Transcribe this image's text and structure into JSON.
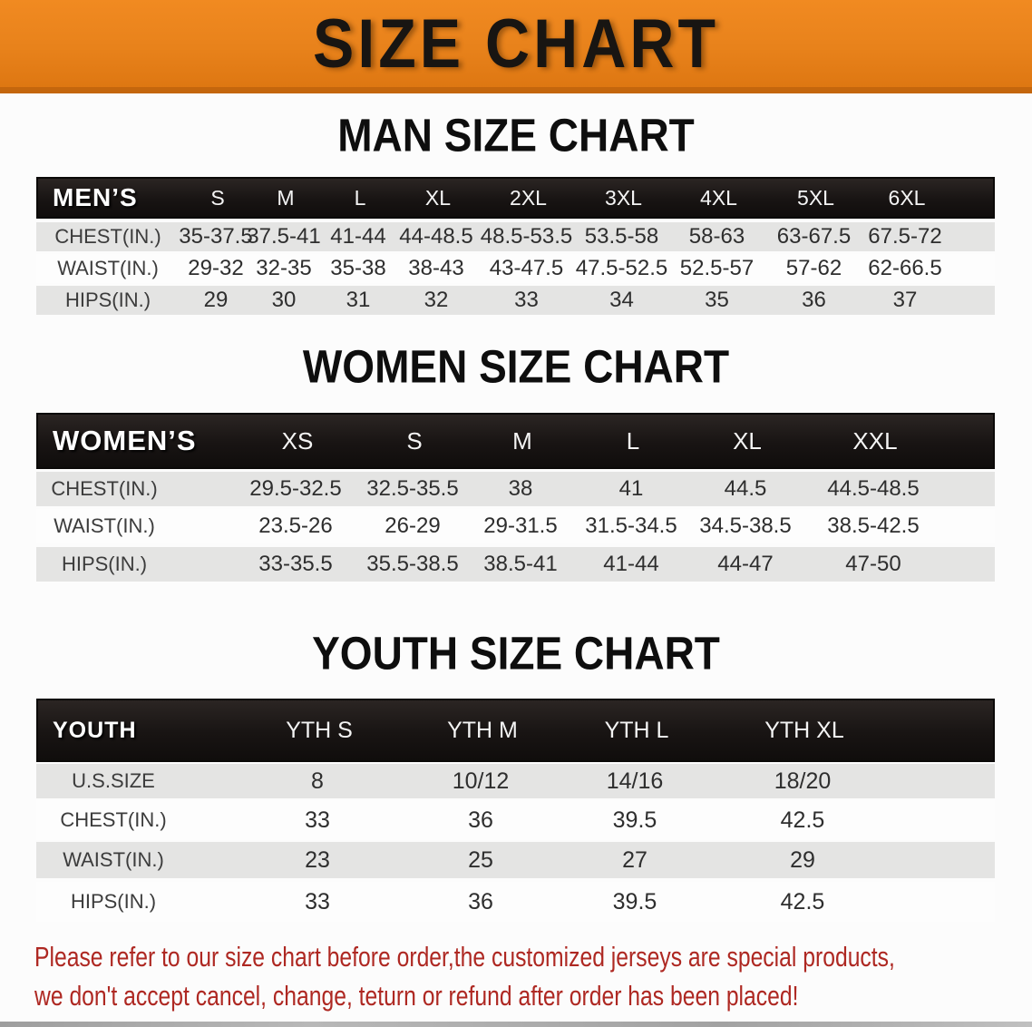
{
  "banner": {
    "title": "SIZE CHART",
    "bg_color": "#E8821B",
    "text_color": "#181512"
  },
  "sections": [
    {
      "heading": "MAN SIZE CHART",
      "corner_label": "MEN’S",
      "columns": [
        "S",
        "M",
        "L",
        "XL",
        "2XL",
        "3XL",
        "4XL",
        "5XL",
        "6XL"
      ],
      "rows": [
        {
          "label": "CHEST(IN.)",
          "values": [
            "35-37.5",
            "37.5-41",
            "41-44",
            "44-48.5",
            "48.5-53.5",
            "53.5-58",
            "58-63",
            "63-67.5",
            "67.5-72"
          ]
        },
        {
          "label": "WAIST(IN.)",
          "values": [
            "29-32",
            "32-35",
            "35-38",
            "38-43",
            "43-47.5",
            "47.5-52.5",
            "52.5-57",
            "57-62",
            "62-66.5"
          ]
        },
        {
          "label": "HIPS(IN.)",
          "values": [
            "29",
            "30",
            "31",
            "32",
            "33",
            "34",
            "35",
            "36",
            "37"
          ]
        }
      ]
    },
    {
      "heading": "WOMEN SIZE CHART",
      "corner_label": "WOMEN’S",
      "columns": [
        "XS",
        "S",
        "M",
        "L",
        "XL",
        "XXL"
      ],
      "rows": [
        {
          "label": "CHEST(IN.)",
          "values": [
            "29.5-32.5",
            "32.5-35.5",
            "38",
            "41",
            "44.5",
            "44.5-48.5"
          ]
        },
        {
          "label": "WAIST(IN.)",
          "values": [
            "23.5-26",
            "26-29",
            "29-31.5",
            "31.5-34.5",
            "34.5-38.5",
            "38.5-42.5"
          ]
        },
        {
          "label": "HIPS(IN.)",
          "values": [
            "33-35.5",
            "35.5-38.5",
            "38.5-41",
            "41-44",
            "44-47",
            "47-50"
          ]
        }
      ]
    },
    {
      "heading": "YOUTH SIZE CHART",
      "corner_label": "YOUTH",
      "columns": [
        "YTH S",
        "YTH M",
        "YTH L",
        "YTH XL"
      ],
      "rows": [
        {
          "label": "U.S.SIZE",
          "values": [
            "8",
            "10/12",
            "14/16",
            "18/20"
          ]
        },
        {
          "label": "CHEST(IN.)",
          "values": [
            "33",
            "36",
            "39.5",
            "42.5"
          ]
        },
        {
          "label": "WAIST(IN.)",
          "values": [
            "23",
            "25",
            "27",
            "29"
          ]
        },
        {
          "label": "HIPS(IN.)",
          "values": [
            "33",
            "36",
            "39.5",
            "42.5"
          ]
        }
      ]
    }
  ],
  "disclaimer": {
    "line1": "Please refer to our size chart before order,the customized jerseys are special products,",
    "line2": "we don't accept cancel, change, teturn or refund after order has been placed!",
    "color": "#AE2822"
  },
  "colors": {
    "banner_bg": "#E8821B",
    "table_header_bar": "#181413",
    "stripe_gray": "#E4E4E3",
    "disclaimer_red": "#AE2822"
  }
}
